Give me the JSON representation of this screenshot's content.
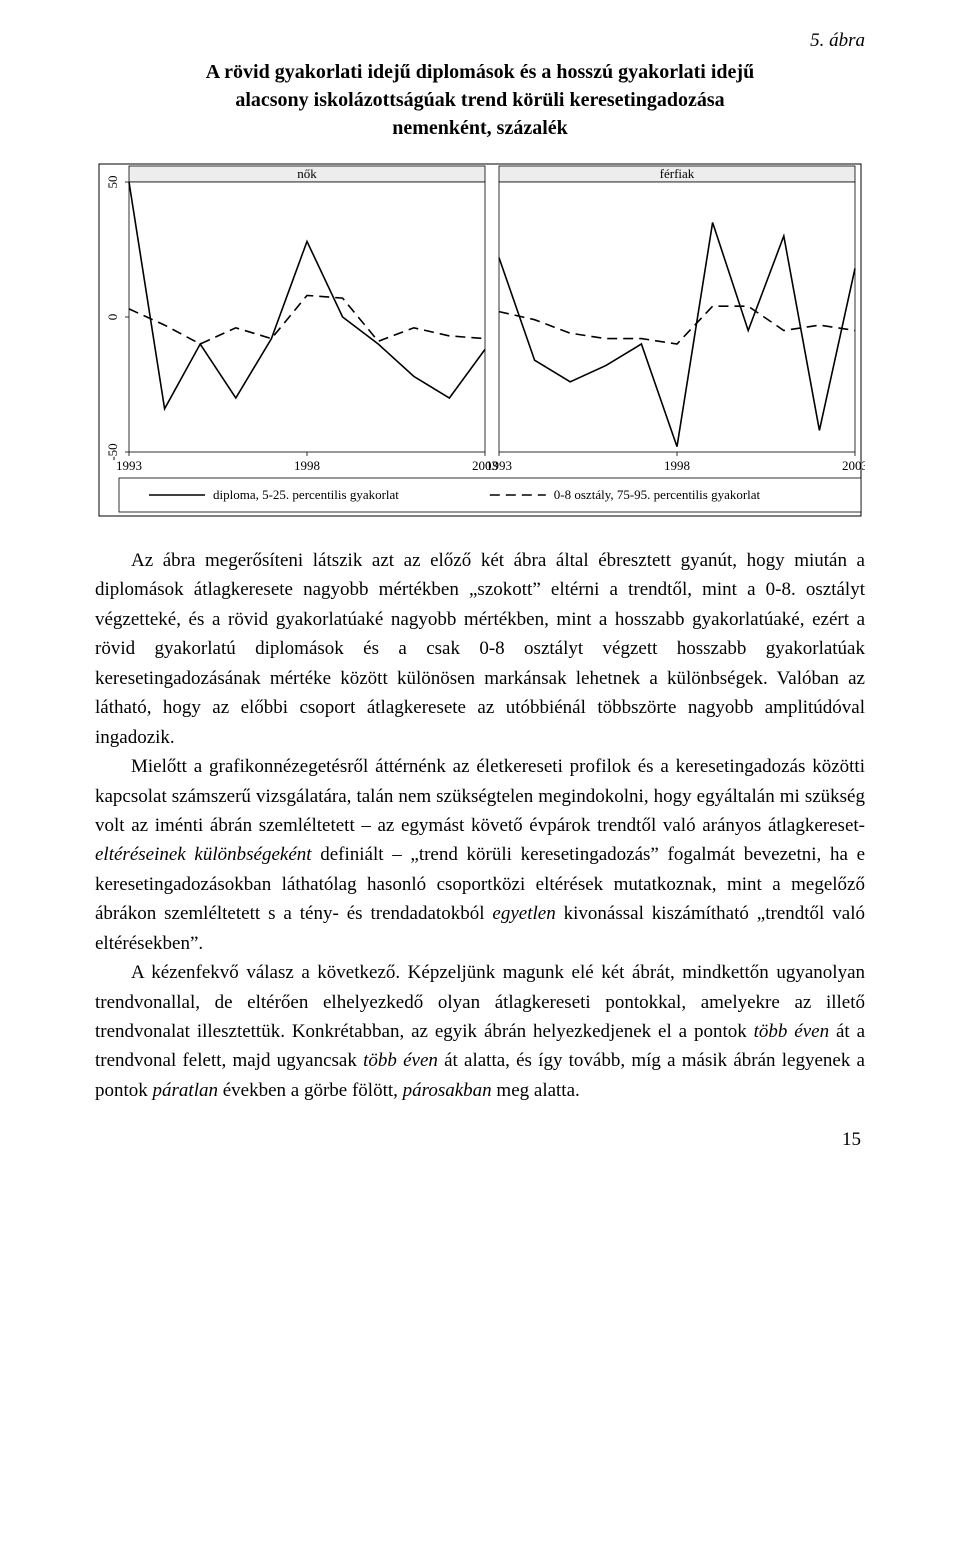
{
  "figure_label": "5. ábra",
  "caption_lines": [
    "A rövid gyakorlati idejű diplomások és a hosszú gyakorlati idejű",
    "alacsony iskolázottságúak trend körüli keresetingadozása",
    "nemenként, százalék"
  ],
  "chart": {
    "type": "line",
    "panels": [
      "nők",
      "férfiak"
    ],
    "x_ticks": [
      1993,
      1998,
      2003
    ],
    "y_ticks": [
      -50,
      0,
      50
    ],
    "ylim": [
      -50,
      50
    ],
    "xlim": [
      1993,
      2003
    ],
    "years": [
      1993,
      1994,
      1995,
      1996,
      1997,
      1998,
      1999,
      2000,
      2001,
      2002,
      2003
    ],
    "series": [
      {
        "name": "diploma, 5-25. percentilis gyakorlat",
        "style": "solid",
        "color": "#000000",
        "width": 1.6,
        "data": {
          "nők": [
            50,
            -34,
            -10,
            -30,
            -8,
            28,
            0,
            -10,
            -22,
            -30,
            -12
          ],
          "férfiak": [
            22,
            -16,
            -24,
            -18,
            -10,
            -48,
            35,
            -5,
            30,
            -42,
            18
          ]
        }
      },
      {
        "name": "0-8 osztály, 75-95. percentilis gyakorlat",
        "style": "dashed",
        "color": "#000000",
        "width": 1.6,
        "data": {
          "nők": [
            3,
            -3,
            -10,
            -4,
            -8,
            8,
            7,
            -9,
            -4,
            -7,
            -8
          ],
          "férfiak": [
            2,
            -1,
            -6,
            -8,
            -8,
            -10,
            4,
            4,
            -5,
            -3,
            -5
          ]
        }
      }
    ],
    "panel_header_bg": "#ededed",
    "plot_bg": "#ffffff",
    "frame_color": "#000000",
    "frame_width": 1,
    "tick_fontsize": 13,
    "header_fontsize": 13,
    "legend_fontsize": 13,
    "y_label_rotated": true
  },
  "paragraphs": [
    "Az ábra megerősíteni látszik azt az előző két ábra által ébresztett gyanút, hogy miután a diplomások átlagkeresete nagyobb mértékben „szokott” eltérni a trendtől, mint a 0-8. osztályt végzetteké, és a rövid gyakorlatúaké nagyobb mértékben, mint a hosszabb gyakorlatúaké, ezért a rövid gyakorlatú diplomások és a csak 0-8 osztályt végzett hosszabb gyakorlatúak keresetingadozásának mértéke között különösen markánsak lehetnek a különbségek. Valóban az látható, hogy az előbbi csoport átlagkeresete az utóbbiénál többszörte nagyobb amplitúdóval ingadozik.",
    "Mielőtt a grafikonnézegetésről áttérnénk az életkereseti profilok és a keresetingadozás közötti kapcsolat számszerű vizsgálatára, talán nem szükségtelen megindokolni, hogy egyáltalán mi szükség volt az iménti ábrán szemléltetett – az egymást követő évpárok trendtől való arányos átlagkereset-<i>eltéréseinek különbségeként</i> definiált – „trend körüli keresetingadozás” fogalmát bevezetni, ha e keresetingadozásokban láthatólag hasonló csoportközi eltérések mutatkoznak, mint a megelőző ábrákon szemléltetett s a tény- és trendadatokból <i>egyetlen</i> kivonással kiszámítható „trendtől való eltérésekben”.",
    "A kézenfekvő válasz a következő. Képzeljünk magunk elé két ábrát, mindkettőn ugyanolyan trendvonallal, de eltérően elhelyezkedő olyan átlagkereseti pontokkal, amelyekre az illető trendvonalat illesztettük. Konkrétabban, az egyik ábrán helyezkedjenek el a pontok <i>több éven</i> át a trendvonal felett, majd ugyancsak <i>több éven</i> át alatta, és így tovább, míg a másik ábrán legyenek a pontok <i>páratlan</i> években a görbe fölött, <i>párosakban</i> meg alatta."
  ],
  "page_number": "15"
}
